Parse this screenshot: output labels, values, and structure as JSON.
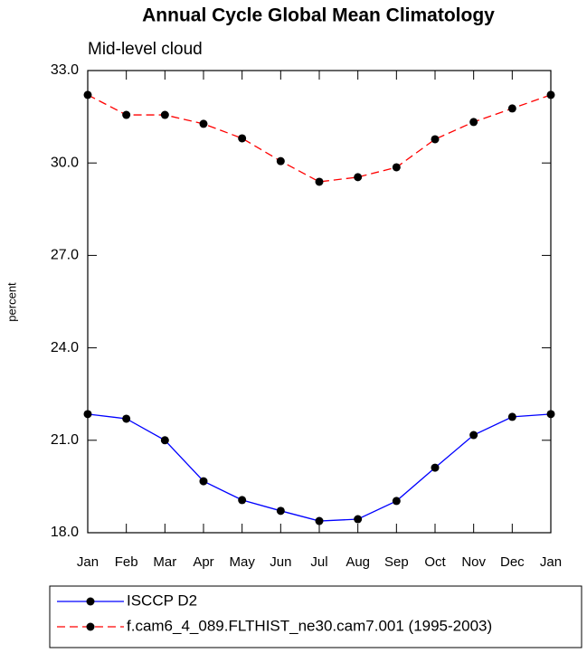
{
  "chart_data": {
    "type": "line",
    "title": "Annual Cycle Global Mean Climatology",
    "subtitle": "Mid-level cloud",
    "y_label": "percent",
    "categories": [
      "Jan",
      "Feb",
      "Mar",
      "Apr",
      "May",
      "Jun",
      "Jul",
      "Aug",
      "Sep",
      "Oct",
      "Nov",
      "Dec",
      "Jan"
    ],
    "ylim": [
      18,
      33
    ],
    "yticks": [
      {
        "value": 18,
        "label": "18.0"
      },
      {
        "value": 21,
        "label": "21.0"
      },
      {
        "value": 24,
        "label": "24.0"
      },
      {
        "value": 27,
        "label": "27.0"
      },
      {
        "value": 30,
        "label": "30.0"
      },
      {
        "value": 33,
        "label": "33.0"
      }
    ],
    "series": [
      {
        "name": "ISCCP D2",
        "color": "#0000ff",
        "dash": false,
        "values": [
          21.85,
          21.7,
          21.0,
          19.67,
          19.06,
          18.71,
          18.38,
          18.44,
          19.03,
          20.11,
          21.17,
          21.76,
          21.85
        ]
      },
      {
        "name": "f.cam6_4_089.FLTHIST_ne30.cam7.001 (1995-2003)",
        "color": "#ff0000",
        "dash": true,
        "values": [
          32.21,
          31.56,
          31.56,
          31.27,
          30.8,
          30.06,
          29.39,
          29.54,
          29.86,
          30.77,
          31.33,
          31.77,
          32.21
        ]
      }
    ]
  }
}
